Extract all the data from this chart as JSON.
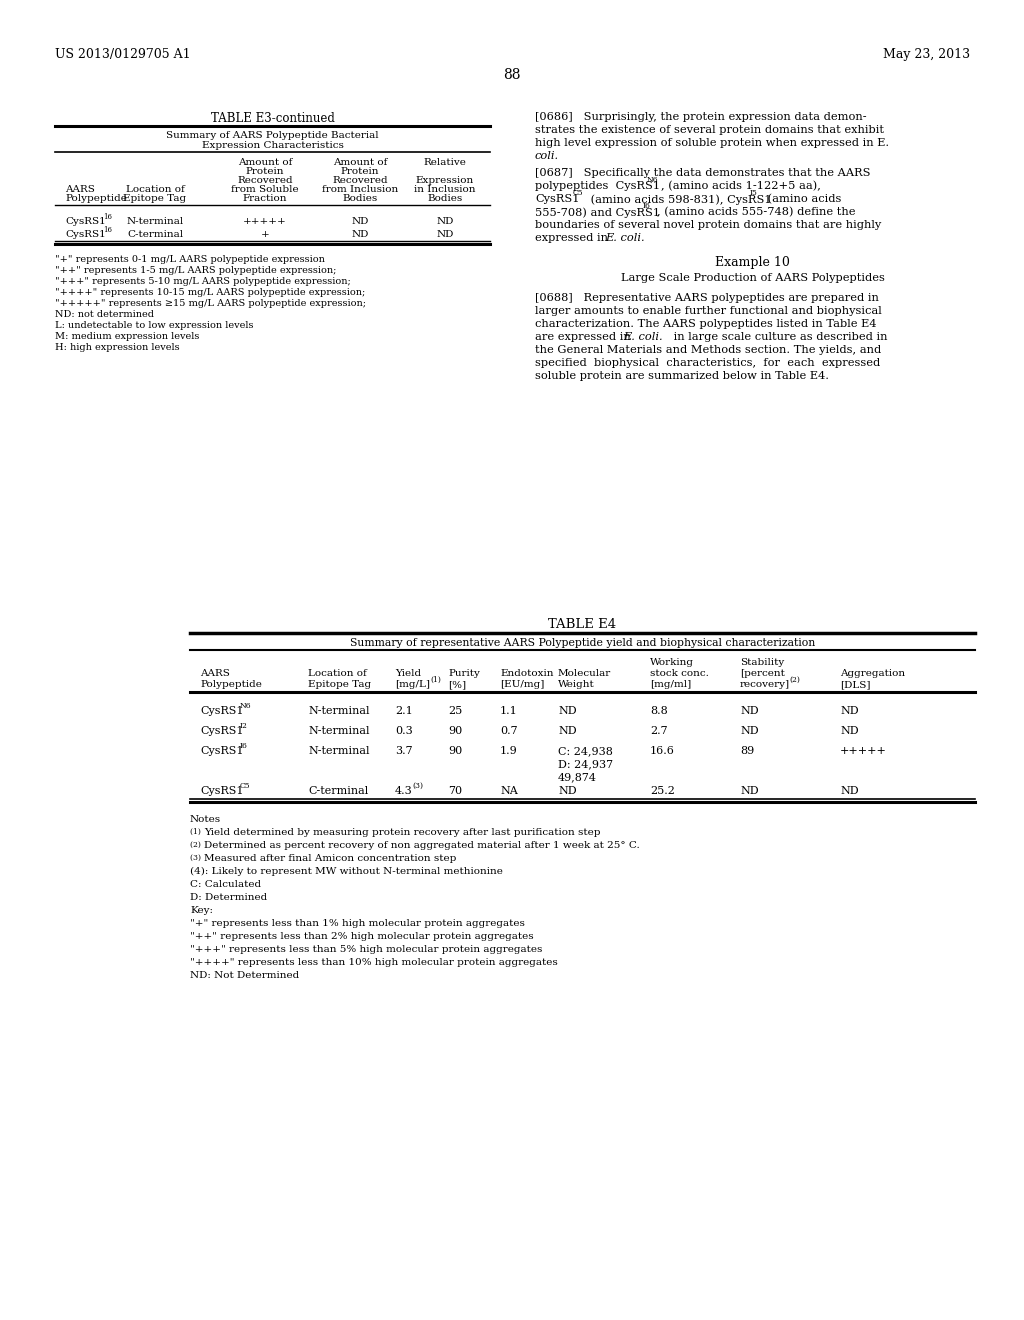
{
  "bg_color": "#ffffff",
  "header_left": "US 2013/0129705 A1",
  "header_right": "May 23, 2013",
  "page_number": "88"
}
